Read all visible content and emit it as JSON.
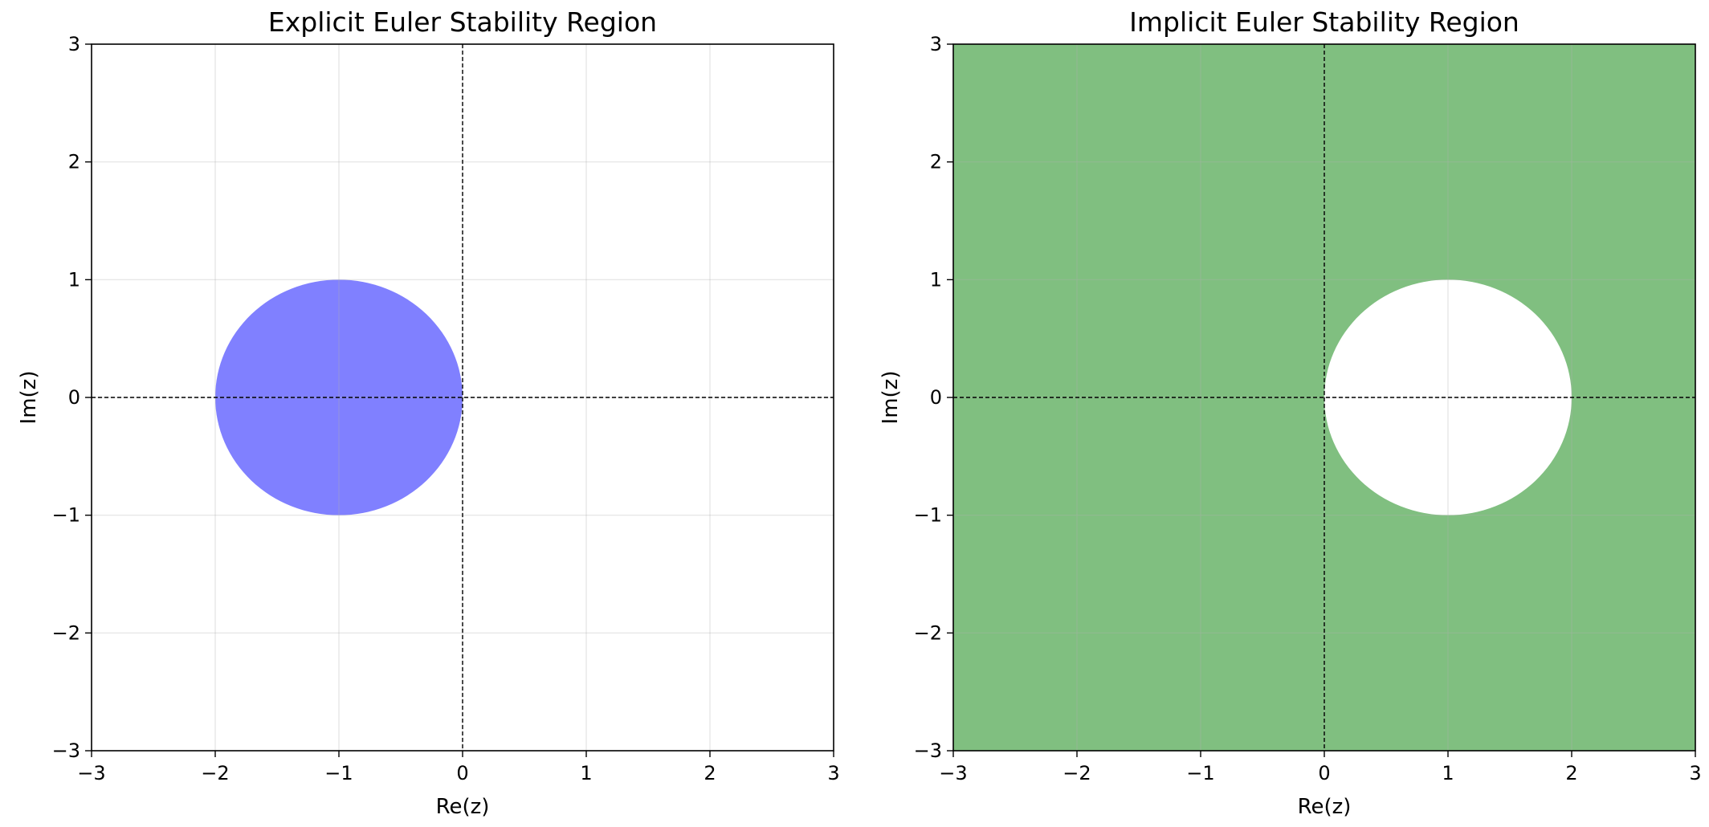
{
  "chart_data": [
    {
      "type": "area",
      "title": "Explicit Euler Stability Region",
      "xlabel": "Re(z)",
      "ylabel": "Im(z)",
      "xlim": [
        -3,
        3
      ],
      "ylim": [
        -3,
        3
      ],
      "xticks": [
        -3,
        -2,
        -1,
        0,
        1,
        2,
        3
      ],
      "yticks": [
        -3,
        -2,
        -1,
        0,
        1,
        2,
        3
      ],
      "grid": true,
      "reference_lines": {
        "x": 0,
        "y": 0,
        "style": "dashed"
      },
      "region": {
        "shape": "disk",
        "center": [
          -1,
          0
        ],
        "radius": 1,
        "filled": "inside"
      },
      "fill_color": "#8080ff"
    },
    {
      "type": "area",
      "title": "Implicit Euler Stability Region",
      "xlabel": "Re(z)",
      "ylabel": "Im(z)",
      "xlim": [
        -3,
        3
      ],
      "ylim": [
        -3,
        3
      ],
      "xticks": [
        -3,
        -2,
        -1,
        0,
        1,
        2,
        3
      ],
      "yticks": [
        -3,
        -2,
        -1,
        0,
        1,
        2,
        3
      ],
      "grid": true,
      "reference_lines": {
        "x": 0,
        "y": 0,
        "style": "dashed"
      },
      "region": {
        "shape": "disk",
        "center": [
          1,
          0
        ],
        "radius": 1,
        "filled": "outside"
      },
      "fill_color": "#80bf80"
    }
  ]
}
